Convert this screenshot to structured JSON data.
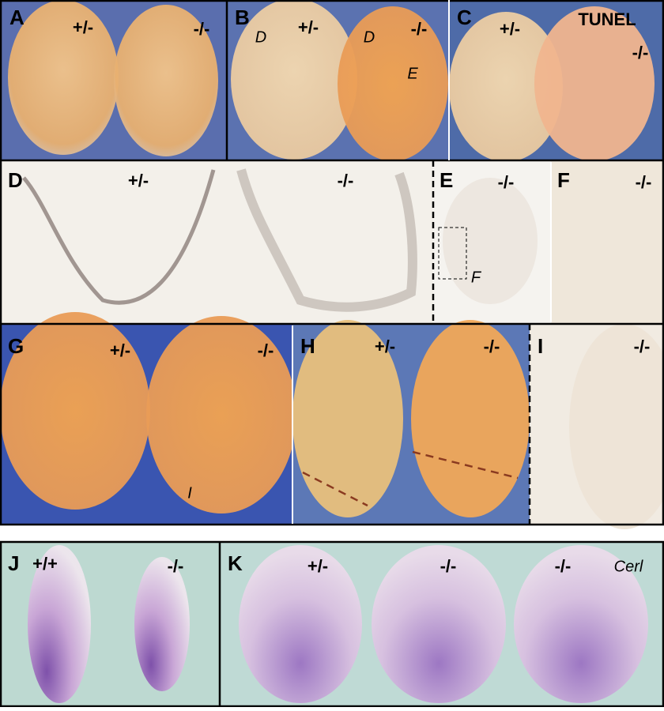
{
  "panels": [
    {
      "letter": "A",
      "labels": [
        "+/-",
        "-/-"
      ]
    },
    {
      "letter": "B",
      "labels": [
        "+/-",
        "-/-",
        "D",
        "D",
        "E"
      ]
    },
    {
      "letter": "C",
      "labels": [
        "+/-",
        "TUNEL",
        "-/-"
      ]
    },
    {
      "letter": "D",
      "labels": [
        "+/-",
        "-/-"
      ]
    },
    {
      "letter": "E",
      "labels": [
        "-/-",
        "F"
      ]
    },
    {
      "letter": "F",
      "labels": [
        "-/-"
      ]
    },
    {
      "letter": "G",
      "labels": [
        "+/-",
        "-/-",
        "I"
      ]
    },
    {
      "letter": "H",
      "labels": [
        "+/-",
        "-/-"
      ]
    },
    {
      "letter": "I",
      "labels": [
        "-/-"
      ]
    },
    {
      "letter": "J",
      "labels": [
        "+/+",
        "-/-"
      ]
    },
    {
      "letter": "K",
      "labels": [
        "+/-",
        "-/-",
        "-/-",
        "Cerl"
      ]
    }
  ]
}
